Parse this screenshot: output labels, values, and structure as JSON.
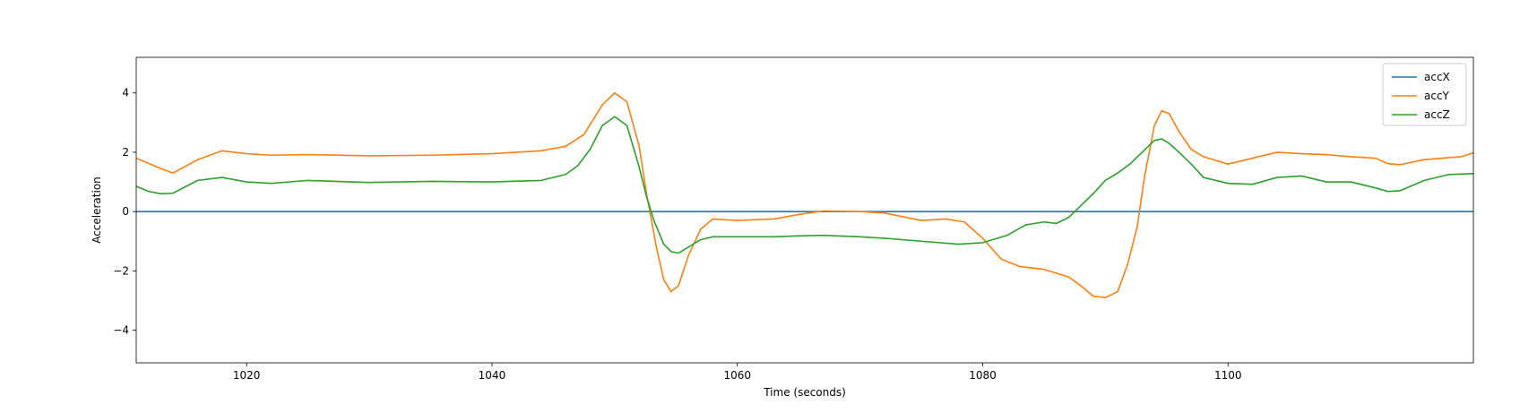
{
  "chart_data": {
    "type": "line",
    "title": "",
    "xlabel": "Time (seconds)",
    "ylabel": "Acceleration",
    "xlim": [
      1011,
      1120
    ],
    "ylim": [
      -5.1,
      5.2
    ],
    "xticks": [
      1020,
      1040,
      1060,
      1080,
      1100
    ],
    "yticks": [
      -4,
      -2,
      0,
      2,
      4
    ],
    "ytick_labels": [
      "−4",
      "−2",
      "0",
      "2",
      "4"
    ],
    "grid": false,
    "legend_position": "top-right",
    "series": [
      {
        "name": "accX",
        "color": "#1f77b4",
        "x": [
          1011,
          1120
        ],
        "y": [
          0,
          0
        ]
      },
      {
        "name": "accY",
        "color": "#ff7f0e",
        "x": [
          1011,
          1013,
          1014,
          1016,
          1018,
          1020,
          1022,
          1025,
          1030,
          1035,
          1040,
          1044,
          1046,
          1047.5,
          1049,
          1050,
          1051,
          1052,
          1052.6,
          1053.4,
          1054,
          1054.6,
          1055.2,
          1056,
          1057,
          1058,
          1060,
          1063,
          1065,
          1067,
          1070,
          1072,
          1075,
          1077,
          1078.5,
          1080,
          1081.5,
          1083,
          1085,
          1087,
          1088,
          1089,
          1090,
          1091,
          1091.8,
          1092.6,
          1093.2,
          1094,
          1094.6,
          1095.2,
          1096,
          1097,
          1098,
          1100,
          1102,
          1104,
          1106,
          1108,
          1110,
          1112,
          1113,
          1114,
          1116,
          1118,
          1119,
          1120
        ],
        "y": [
          1.8,
          1.45,
          1.3,
          1.75,
          2.05,
          1.95,
          1.9,
          1.92,
          1.88,
          1.9,
          1.95,
          2.05,
          2.2,
          2.6,
          3.6,
          4.0,
          3.7,
          2.2,
          0.6,
          -1.2,
          -2.3,
          -2.7,
          -2.5,
          -1.5,
          -0.6,
          -0.25,
          -0.3,
          -0.25,
          -0.1,
          0.02,
          0.0,
          -0.05,
          -0.3,
          -0.25,
          -0.35,
          -0.9,
          -1.6,
          -1.85,
          -1.95,
          -2.2,
          -2.5,
          -2.85,
          -2.9,
          -2.7,
          -1.8,
          -0.5,
          1.2,
          2.9,
          3.4,
          3.3,
          2.7,
          2.1,
          1.85,
          1.6,
          1.8,
          2.0,
          1.95,
          1.92,
          1.85,
          1.8,
          1.62,
          1.58,
          1.75,
          1.82,
          1.85,
          1.98
        ]
      },
      {
        "name": "accZ",
        "color": "#2ca02c",
        "x": [
          1011,
          1012,
          1013,
          1014,
          1016,
          1018,
          1020,
          1022,
          1025,
          1030,
          1035,
          1040,
          1044,
          1046,
          1047,
          1048,
          1049,
          1050,
          1051,
          1052,
          1052.6,
          1053.2,
          1054,
          1054.6,
          1055.2,
          1056,
          1057,
          1058,
          1060,
          1063,
          1065,
          1067,
          1070,
          1072,
          1075,
          1078,
          1080,
          1082,
          1083.5,
          1085,
          1086,
          1087,
          1088,
          1089,
          1090,
          1091,
          1092,
          1093,
          1094,
          1094.6,
          1095.2,
          1096,
          1097,
          1098,
          1100,
          1102,
          1104,
          1106,
          1108,
          1110,
          1112,
          1113,
          1114,
          1116,
          1118,
          1120
        ],
        "y": [
          0.85,
          0.68,
          0.6,
          0.62,
          1.05,
          1.15,
          1.0,
          0.95,
          1.05,
          0.98,
          1.02,
          1.0,
          1.05,
          1.25,
          1.55,
          2.1,
          2.9,
          3.2,
          2.9,
          1.5,
          0.5,
          -0.3,
          -1.1,
          -1.35,
          -1.4,
          -1.2,
          -0.95,
          -0.85,
          -0.85,
          -0.85,
          -0.82,
          -0.8,
          -0.85,
          -0.9,
          -1.0,
          -1.1,
          -1.05,
          -0.8,
          -0.45,
          -0.35,
          -0.4,
          -0.2,
          0.2,
          0.6,
          1.05,
          1.3,
          1.6,
          2.0,
          2.4,
          2.45,
          2.3,
          2.0,
          1.6,
          1.15,
          0.95,
          0.92,
          1.15,
          1.2,
          1.0,
          1.0,
          0.8,
          0.68,
          0.7,
          1.05,
          1.25,
          1.28
        ]
      }
    ]
  }
}
